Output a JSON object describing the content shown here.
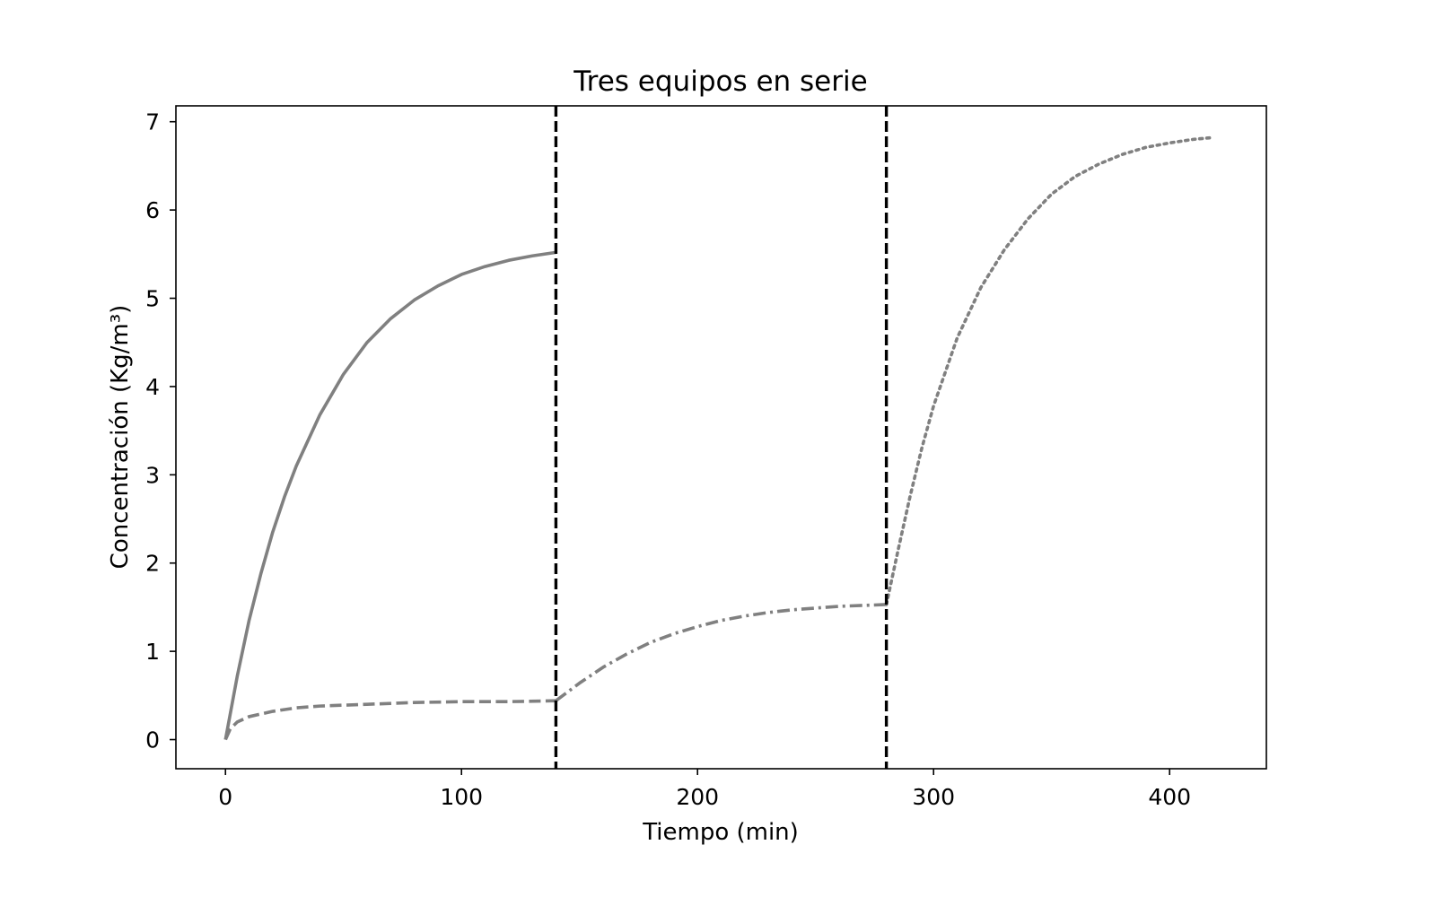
{
  "chart_data": {
    "type": "line",
    "title": "Tres equipos en serie",
    "xlabel": "Tiempo (min)",
    "ylabel": "Concentración (Kg/m³)",
    "xlim": [
      -21,
      441
    ],
    "ylim": [
      -0.33,
      7.18
    ],
    "xticks": [
      0,
      100,
      200,
      300,
      400
    ],
    "yticks": [
      0,
      1,
      2,
      3,
      4,
      5,
      6,
      7
    ],
    "grid": false,
    "line_color": "#808080",
    "vlines": [
      {
        "x": 140,
        "style": "dashed",
        "color": "#000000"
      },
      {
        "x": 280,
        "style": "dashed",
        "color": "#000000"
      }
    ],
    "series": [
      {
        "style": "solid",
        "x": [
          0,
          5,
          10,
          15,
          20,
          25,
          30,
          40,
          50,
          60,
          70,
          80,
          90,
          100,
          110,
          120,
          130,
          140
        ],
        "y": [
          0,
          0.72,
          1.35,
          1.88,
          2.35,
          2.75,
          3.1,
          3.68,
          4.14,
          4.5,
          4.77,
          4.98,
          5.14,
          5.27,
          5.36,
          5.43,
          5.48,
          5.52
        ]
      },
      {
        "style": "dashed",
        "x": [
          0,
          2,
          5,
          10,
          20,
          30,
          40,
          60,
          80,
          100,
          120,
          140
        ],
        "y": [
          0,
          0.12,
          0.2,
          0.26,
          0.32,
          0.36,
          0.38,
          0.4,
          0.42,
          0.43,
          0.43,
          0.44
        ]
      },
      {
        "style": "dashdot",
        "x": [
          140,
          150,
          160,
          170,
          180,
          190,
          200,
          210,
          220,
          230,
          240,
          250,
          260,
          270,
          280
        ],
        "y": [
          0.44,
          0.64,
          0.82,
          0.97,
          1.1,
          1.2,
          1.28,
          1.35,
          1.4,
          1.44,
          1.47,
          1.49,
          1.51,
          1.52,
          1.53
        ]
      },
      {
        "style": "dotted",
        "x": [
          280,
          285,
          290,
          295,
          300,
          310,
          320,
          330,
          340,
          350,
          360,
          370,
          380,
          390,
          400,
          410,
          418
        ],
        "y": [
          1.53,
          2.15,
          2.75,
          3.3,
          3.78,
          4.55,
          5.12,
          5.55,
          5.9,
          6.18,
          6.38,
          6.52,
          6.63,
          6.71,
          6.76,
          6.8,
          6.82
        ]
      }
    ]
  }
}
